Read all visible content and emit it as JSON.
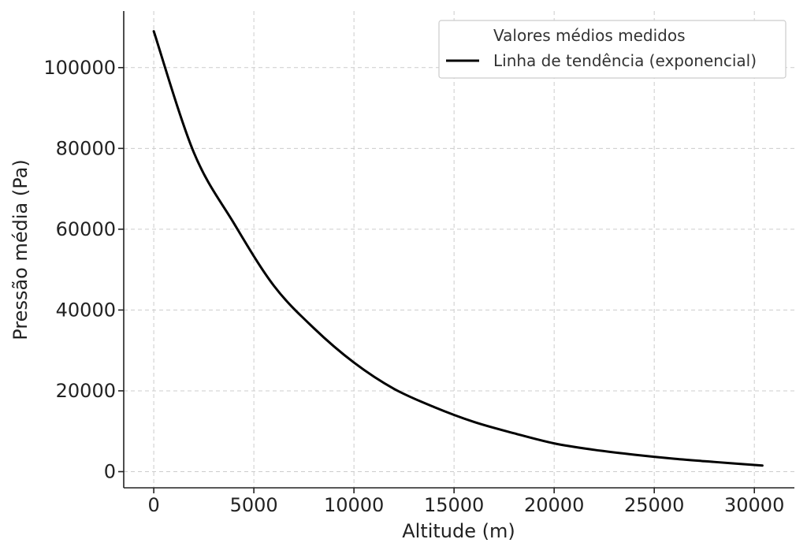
{
  "chart_data": {
    "type": "line",
    "title": "",
    "xlabel": "Altitude (m)",
    "ylabel": "Pressão média (Pa)",
    "xlim": [
      -1500,
      32000
    ],
    "ylim": [
      -4000,
      114000
    ],
    "x_ticks": [
      0,
      5000,
      10000,
      15000,
      20000,
      25000,
      30000
    ],
    "y_ticks": [
      0,
      20000,
      40000,
      60000,
      80000,
      100000
    ],
    "grid": true,
    "legend_position": "top-right",
    "series": [
      {
        "name": "Valores médios medidos",
        "kind": "scatter",
        "color": "#ffffff",
        "x": [],
        "y": []
      },
      {
        "name": "Linha de tendência (exponencial)",
        "kind": "line",
        "color": "#000000",
        "x": [
          0,
          2000,
          4000,
          6000,
          8000,
          10000,
          12000,
          14000,
          16000,
          18000,
          20000,
          22000,
          24000,
          26000,
          28000,
          30400
        ],
        "y": [
          109000,
          79000,
          61500,
          46000,
          35500,
          27000,
          20500,
          16000,
          12300,
          9500,
          7000,
          5400,
          4200,
          3200,
          2400,
          1500
        ]
      }
    ]
  }
}
